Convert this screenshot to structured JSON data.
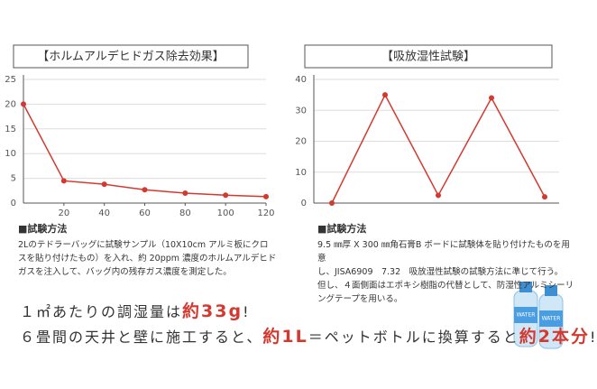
{
  "chart_data": [
    {
      "type": "line",
      "title": "【ホルムアルデヒドガス除去効果】",
      "x": [
        0,
        20,
        40,
        60,
        80,
        100,
        120
      ],
      "values": [
        20,
        4.5,
        3.8,
        2.7,
        2.0,
        1.6,
        1.3
      ],
      "color": "#d3392f",
      "xlim": [
        0,
        120
      ],
      "xticks": [
        20,
        40,
        60,
        80,
        100,
        120
      ],
      "ylim": [
        0,
        25
      ],
      "yticks": [
        0,
        5,
        10,
        15,
        20,
        25
      ],
      "grid": true
    },
    {
      "type": "line",
      "title": "【吸放湿性試験】",
      "categories": [
        null,
        null,
        null,
        null,
        null
      ],
      "values": [
        0,
        35,
        2.5,
        34,
        2
      ],
      "color": "#d3392f",
      "ylim": [
        0,
        40
      ],
      "yticks": [
        0,
        10,
        20,
        30,
        40
      ],
      "grid": true
    }
  ],
  "methods": [
    {
      "heading": "■試験方法",
      "lines": [
        "2Lのテドラーバッグに試験サンプル（10X10cm アルミ板にクロ",
        "スを貼り付けたもの）を入れ、約 20ppm 濃度のホルムアルデヒド",
        "ガスを注入して、バッグ内の残存ガス濃度を測定した。"
      ]
    },
    {
      "heading": "■試験方法",
      "lines": [
        "9.5 ㎜厚 X 300 ㎜角石膏B ボードに試験体を貼り付けたものを用意",
        "し、JISA6909　7.32　吸放湿性試験の試験方法に準じて行う。",
        "但し、４面側面はエポキシ樹脂の代替として、防湿性アルミシーリ",
        "ングテープを用いる。"
      ]
    }
  ],
  "summary": {
    "line1": [
      "１㎡あたりの調湿量は",
      "約33g",
      "!"
    ],
    "line2": [
      "６畳間の天井と壁に施工すると、",
      "約1L",
      "＝ペットボトルに換算すると",
      "約2本分",
      "!"
    ]
  },
  "bottle_label": "WATER"
}
